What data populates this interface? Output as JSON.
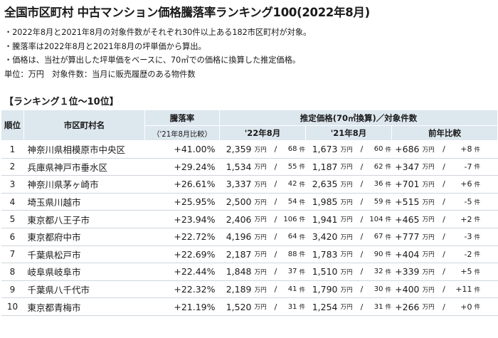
{
  "title": "全国市区町村 中古マンション価格騰落率ランキング100(2022年8月)",
  "notes": [
    "・2022年8月と2021年8月の対象件数がそれぞれ30件以上ある182市区町村が対象。",
    "・騰落率は2022年8月と2021年8月の坪単価から算出。",
    "・価格は、当社が算出した坪単価をベースに、70㎡での価格に換算した推定価格。",
    "単位：万円　対象件数：当月に販売履歴のある物件数"
  ],
  "section_title": "【ランキング１位～10位】",
  "header": {
    "rank": "順位",
    "city": "市区町村名",
    "rate": "騰落率",
    "rate_sub": "（'21年8月比較）",
    "price_group": "推定価格(70㎡換算)／対象件数",
    "y22": "'22年8月",
    "y21": "'21年8月",
    "yoy": "前年比較"
  },
  "units": {
    "man_yen": "万円",
    "ken": "件",
    "slash": "/"
  },
  "rows": [
    {
      "rank": "1",
      "city": "神奈川県相模原市中央区",
      "rate": "+41.00%",
      "p22": "2,359",
      "c22": "68",
      "p21": "1,673",
      "c21": "60",
      "dp": "+686",
      "dc": "+8"
    },
    {
      "rank": "2",
      "city": "兵庫県神戸市垂水区",
      "rate": "+29.24%",
      "p22": "1,534",
      "c22": "55",
      "p21": "1,187",
      "c21": "62",
      "dp": "+347",
      "dc": "-7"
    },
    {
      "rank": "3",
      "city": "神奈川県茅ヶ崎市",
      "rate": "+26.61%",
      "p22": "3,337",
      "c22": "42",
      "p21": "2,635",
      "c21": "36",
      "dp": "+701",
      "dc": "+6"
    },
    {
      "rank": "4",
      "city": "埼玉県川越市",
      "rate": "+25.95%",
      "p22": "2,500",
      "c22": "54",
      "p21": "1,985",
      "c21": "59",
      "dp": "+515",
      "dc": "-5"
    },
    {
      "rank": "5",
      "city": "東京都八王子市",
      "rate": "+23.94%",
      "p22": "2,406",
      "c22": "106",
      "p21": "1,941",
      "c21": "104",
      "dp": "+465",
      "dc": "+2"
    },
    {
      "rank": "6",
      "city": "東京都府中市",
      "rate": "+22.72%",
      "p22": "4,196",
      "c22": "64",
      "p21": "3,420",
      "c21": "67",
      "dp": "+777",
      "dc": "-3"
    },
    {
      "rank": "7",
      "city": "千葉県松戸市",
      "rate": "+22.69%",
      "p22": "2,187",
      "c22": "88",
      "p21": "1,783",
      "c21": "90",
      "dp": "+404",
      "dc": "-2"
    },
    {
      "rank": "8",
      "city": "岐阜県岐阜市",
      "rate": "+22.44%",
      "p22": "1,848",
      "c22": "37",
      "p21": "1,510",
      "c21": "32",
      "dp": "+339",
      "dc": "+5"
    },
    {
      "rank": "9",
      "city": "千葉県八千代市",
      "rate": "+22.32%",
      "p22": "2,189",
      "c22": "41",
      "p21": "1,790",
      "c21": "30",
      "dp": "+400",
      "dc": "+11"
    },
    {
      "rank": "10",
      "city": "東京都青梅市",
      "rate": "+21.19%",
      "p22": "1,520",
      "c22": "31",
      "p21": "1,254",
      "c21": "31",
      "dp": "+266",
      "dc": "+0"
    }
  ]
}
